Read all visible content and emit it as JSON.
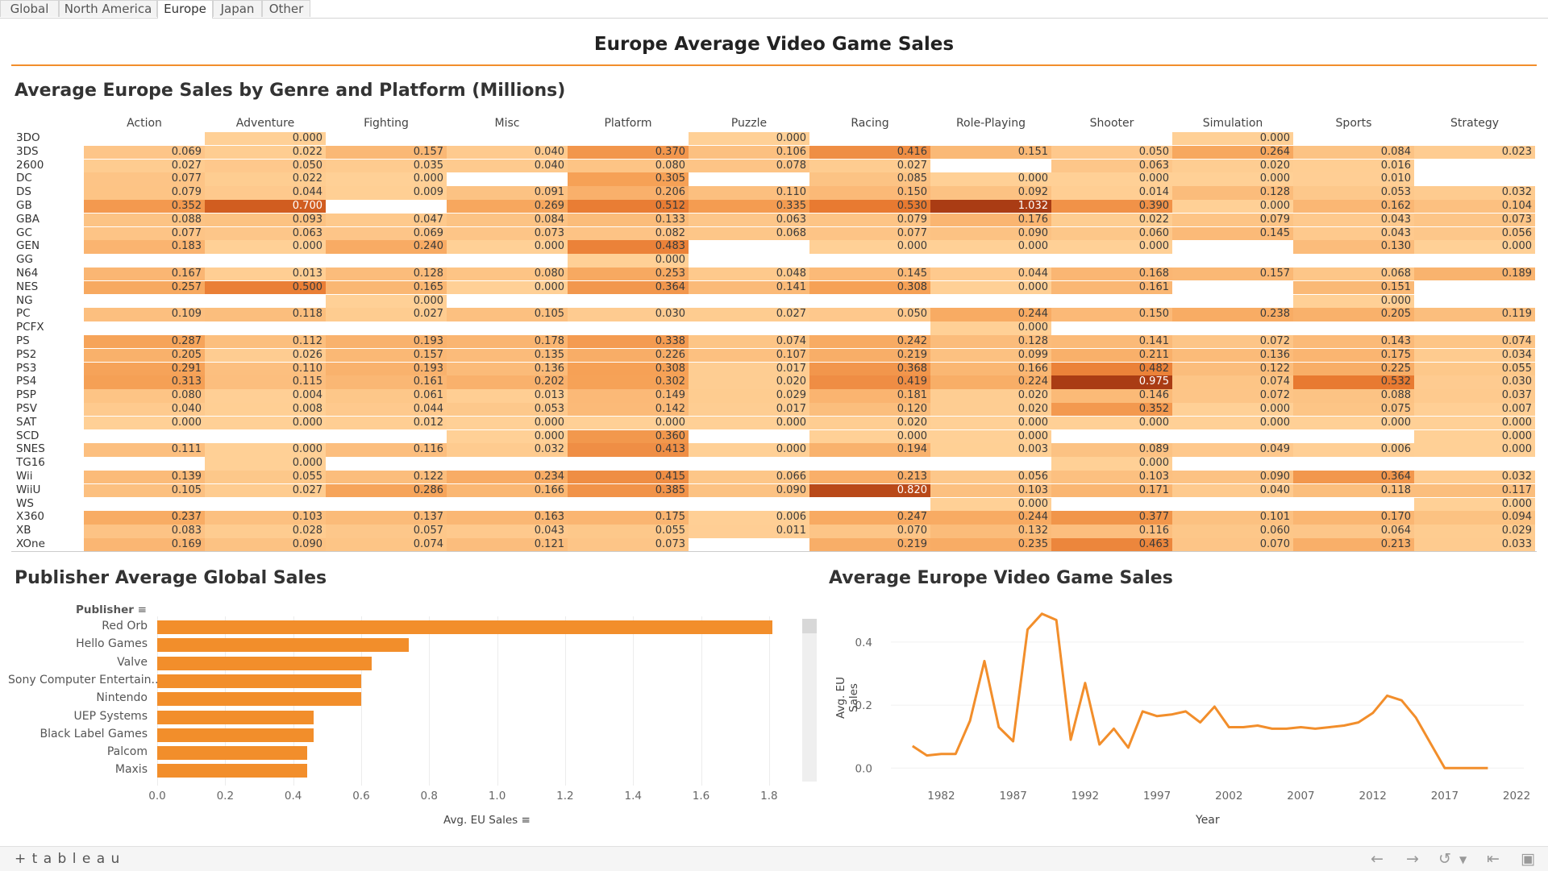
{
  "tabs": [
    "Global",
    "North America",
    "Europe",
    "Japan",
    "Other"
  ],
  "active_tab": "Europe",
  "dashboard_title": "Europe Average Video Game Sales",
  "heatmap": {
    "title": "Average Europe Sales by Genre and Platform (Millions)",
    "genres": [
      "Action",
      "Adventure",
      "Fighting",
      "Misc",
      "Platform",
      "Puzzle",
      "Racing",
      "Role-Playing",
      "Shooter",
      "Simulation",
      "Sports",
      "Strategy"
    ],
    "platforms": [
      "3DO",
      "3DS",
      "2600",
      "DC",
      "DS",
      "GB",
      "GBA",
      "GC",
      "GEN",
      "GG",
      "N64",
      "NES",
      "NG",
      "PC",
      "PCFX",
      "PS",
      "PS2",
      "PS3",
      "PS4",
      "PSP",
      "PSV",
      "SAT",
      "SCD",
      "SNES",
      "TG16",
      "Wii",
      "WiiU",
      "WS",
      "X360",
      "XB",
      "XOne"
    ],
    "values": [
      [
        null,
        "0.000",
        null,
        null,
        null,
        "0.000",
        null,
        null,
        null,
        "0.000",
        null,
        null
      ],
      [
        "0.069",
        "0.022",
        "0.157",
        "0.040",
        "0.370",
        "0.106",
        "0.416",
        "0.151",
        "0.050",
        "0.264",
        "0.084",
        "0.023"
      ],
      [
        "0.027",
        "0.050",
        "0.035",
        "0.040",
        "0.080",
        "0.078",
        "0.027",
        null,
        "0.063",
        "0.020",
        "0.016",
        null
      ],
      [
        "0.077",
        "0.022",
        "0.000",
        null,
        "0.305",
        null,
        "0.085",
        "0.000",
        "0.000",
        "0.000",
        "0.010",
        null
      ],
      [
        "0.079",
        "0.044",
        "0.009",
        "0.091",
        "0.206",
        "0.110",
        "0.150",
        "0.092",
        "0.014",
        "0.128",
        "0.053",
        "0.032"
      ],
      [
        "0.352",
        "0.700",
        null,
        "0.269",
        "0.512",
        "0.335",
        "0.530",
        "1.032",
        "0.390",
        "0.000",
        "0.162",
        "0.104"
      ],
      [
        "0.088",
        "0.093",
        "0.047",
        "0.084",
        "0.133",
        "0.063",
        "0.079",
        "0.176",
        "0.022",
        "0.079",
        "0.043",
        "0.073"
      ],
      [
        "0.077",
        "0.063",
        "0.069",
        "0.073",
        "0.082",
        "0.068",
        "0.077",
        "0.090",
        "0.060",
        "0.145",
        "0.043",
        "0.056"
      ],
      [
        "0.183",
        "0.000",
        "0.240",
        "0.000",
        "0.483",
        null,
        "0.000",
        "0.000",
        "0.000",
        null,
        "0.130",
        "0.000"
      ],
      [
        null,
        null,
        null,
        null,
        "0.000",
        null,
        null,
        null,
        null,
        null,
        null,
        null
      ],
      [
        "0.167",
        "0.013",
        "0.128",
        "0.080",
        "0.253",
        "0.048",
        "0.145",
        "0.044",
        "0.168",
        "0.157",
        "0.068",
        "0.189"
      ],
      [
        "0.257",
        "0.500",
        "0.165",
        "0.000",
        "0.364",
        "0.141",
        "0.308",
        "0.000",
        "0.161",
        null,
        "0.151",
        null
      ],
      [
        null,
        null,
        "0.000",
        null,
        null,
        null,
        null,
        null,
        null,
        null,
        "0.000",
        null
      ],
      [
        "0.109",
        "0.118",
        "0.027",
        "0.105",
        "0.030",
        "0.027",
        "0.050",
        "0.244",
        "0.150",
        "0.238",
        "0.205",
        "0.119"
      ],
      [
        null,
        null,
        null,
        null,
        null,
        null,
        null,
        "0.000",
        null,
        null,
        null,
        null
      ],
      [
        "0.287",
        "0.112",
        "0.193",
        "0.178",
        "0.338",
        "0.074",
        "0.242",
        "0.128",
        "0.141",
        "0.072",
        "0.143",
        "0.074"
      ],
      [
        "0.205",
        "0.026",
        "0.157",
        "0.135",
        "0.226",
        "0.107",
        "0.219",
        "0.099",
        "0.211",
        "0.136",
        "0.175",
        "0.034"
      ],
      [
        "0.291",
        "0.110",
        "0.193",
        "0.136",
        "0.308",
        "0.017",
        "0.368",
        "0.166",
        "0.482",
        "0.122",
        "0.225",
        "0.055"
      ],
      [
        "0.313",
        "0.115",
        "0.161",
        "0.202",
        "0.302",
        "0.020",
        "0.419",
        "0.224",
        "0.975",
        "0.074",
        "0.532",
        "0.030"
      ],
      [
        "0.080",
        "0.004",
        "0.061",
        "0.013",
        "0.149",
        "0.029",
        "0.181",
        "0.020",
        "0.146",
        "0.072",
        "0.088",
        "0.037"
      ],
      [
        "0.040",
        "0.008",
        "0.044",
        "0.053",
        "0.142",
        "0.017",
        "0.120",
        "0.020",
        "0.352",
        "0.000",
        "0.075",
        "0.007"
      ],
      [
        "0.000",
        "0.000",
        "0.012",
        "0.000",
        "0.000",
        "0.000",
        "0.020",
        "0.000",
        "0.000",
        "0.000",
        "0.000",
        "0.000"
      ],
      [
        null,
        null,
        null,
        "0.000",
        "0.360",
        null,
        "0.000",
        "0.000",
        null,
        null,
        null,
        "0.000"
      ],
      [
        "0.111",
        "0.000",
        "0.116",
        "0.032",
        "0.413",
        "0.000",
        "0.194",
        "0.003",
        "0.089",
        "0.049",
        "0.006",
        "0.000"
      ],
      [
        null,
        "0.000",
        null,
        null,
        null,
        null,
        null,
        null,
        "0.000",
        null,
        null,
        null
      ],
      [
        "0.139",
        "0.055",
        "0.122",
        "0.234",
        "0.415",
        "0.066",
        "0.213",
        "0.056",
        "0.103",
        "0.090",
        "0.364",
        "0.032"
      ],
      [
        "0.105",
        "0.027",
        "0.286",
        "0.166",
        "0.385",
        "0.090",
        "0.820",
        "0.103",
        "0.171",
        "0.040",
        "0.118",
        "0.117"
      ],
      [
        null,
        null,
        null,
        null,
        null,
        null,
        null,
        "0.000",
        null,
        null,
        null,
        "0.000"
      ],
      [
        "0.237",
        "0.103",
        "0.137",
        "0.163",
        "0.175",
        "0.006",
        "0.247",
        "0.244",
        "0.377",
        "0.101",
        "0.170",
        "0.094"
      ],
      [
        "0.083",
        "0.028",
        "0.057",
        "0.043",
        "0.055",
        "0.011",
        "0.070",
        "0.132",
        "0.116",
        "0.060",
        "0.064",
        "0.029"
      ],
      [
        "0.169",
        "0.090",
        "0.074",
        "0.121",
        "0.073",
        null,
        "0.219",
        "0.235",
        "0.463",
        "0.070",
        "0.213",
        "0.033"
      ]
    ]
  },
  "publisher_chart": {
    "title": "Publisher Average Global Sales",
    "column_header": "Publisher",
    "xlabel": "Avg. EU Sales",
    "publishers": [
      "Red Orb",
      "Hello Games",
      "Valve",
      "Sony Computer Entertain..",
      "Nintendo",
      "UEP Systems",
      "Black Label Games",
      "Palcom",
      "Maxis"
    ],
    "values": [
      1.81,
      0.74,
      0.63,
      0.6,
      0.6,
      0.46,
      0.46,
      0.44,
      0.44
    ],
    "ticks": [
      "0.0",
      "0.2",
      "0.4",
      "0.6",
      "0.8",
      "1.0",
      "1.2",
      "1.4",
      "1.6",
      "1.8"
    ]
  },
  "chart_data": [
    {
      "type": "bar",
      "title": "Publisher Average Global Sales",
      "categories": [
        "Red Orb",
        "Hello Games",
        "Valve",
        "Sony Computer Entertain..",
        "Nintendo",
        "UEP Systems",
        "Black Label Games",
        "Palcom",
        "Maxis"
      ],
      "values": [
        1.81,
        0.74,
        0.63,
        0.6,
        0.6,
        0.46,
        0.46,
        0.44,
        0.44
      ],
      "xlabel": "Avg. EU Sales",
      "ylabel": "Publisher",
      "xlim": [
        0,
        1.9
      ]
    },
    {
      "type": "line",
      "title": "Average Europe Video Game Sales",
      "x": [
        1980,
        1981,
        1982,
        1983,
        1984,
        1985,
        1986,
        1987,
        1988,
        1989,
        1990,
        1991,
        1992,
        1993,
        1994,
        1995,
        1996,
        1997,
        1998,
        1999,
        2000,
        2001,
        2002,
        2003,
        2004,
        2005,
        2006,
        2007,
        2008,
        2009,
        2010,
        2011,
        2012,
        2013,
        2014,
        2015,
        2016,
        2017,
        2018,
        2019,
        2020
      ],
      "y": [
        0.07,
        0.04,
        0.045,
        0.045,
        0.15,
        0.34,
        0.13,
        0.085,
        0.44,
        0.49,
        0.47,
        0.09,
        0.27,
        0.075,
        0.125,
        0.065,
        0.18,
        0.165,
        0.17,
        0.18,
        0.145,
        0.195,
        0.13,
        0.13,
        0.135,
        0.125,
        0.125,
        0.13,
        0.125,
        0.13,
        0.135,
        0.145,
        0.175,
        0.23,
        0.215,
        0.16,
        0.08,
        0.0,
        0.0,
        0.0,
        0.0
      ],
      "xlabel": "Year",
      "ylabel": "Avg. EU Sales",
      "xticks": [
        "1982",
        "1987",
        "1992",
        "1997",
        "2002",
        "2007",
        "2012",
        "2017",
        "2022"
      ],
      "yticks": [
        "0.0",
        "0.2",
        "0.4"
      ],
      "ylim": [
        -0.03,
        0.52
      ]
    }
  ],
  "line_chart": {
    "title": "Average Europe Video Game Sales",
    "xlabel": "Year",
    "ylabel": "Avg. EU Sales"
  },
  "colors": {
    "accent": "#f28e2b"
  },
  "footer": {
    "logo_text": "+ t a b l e a u"
  }
}
